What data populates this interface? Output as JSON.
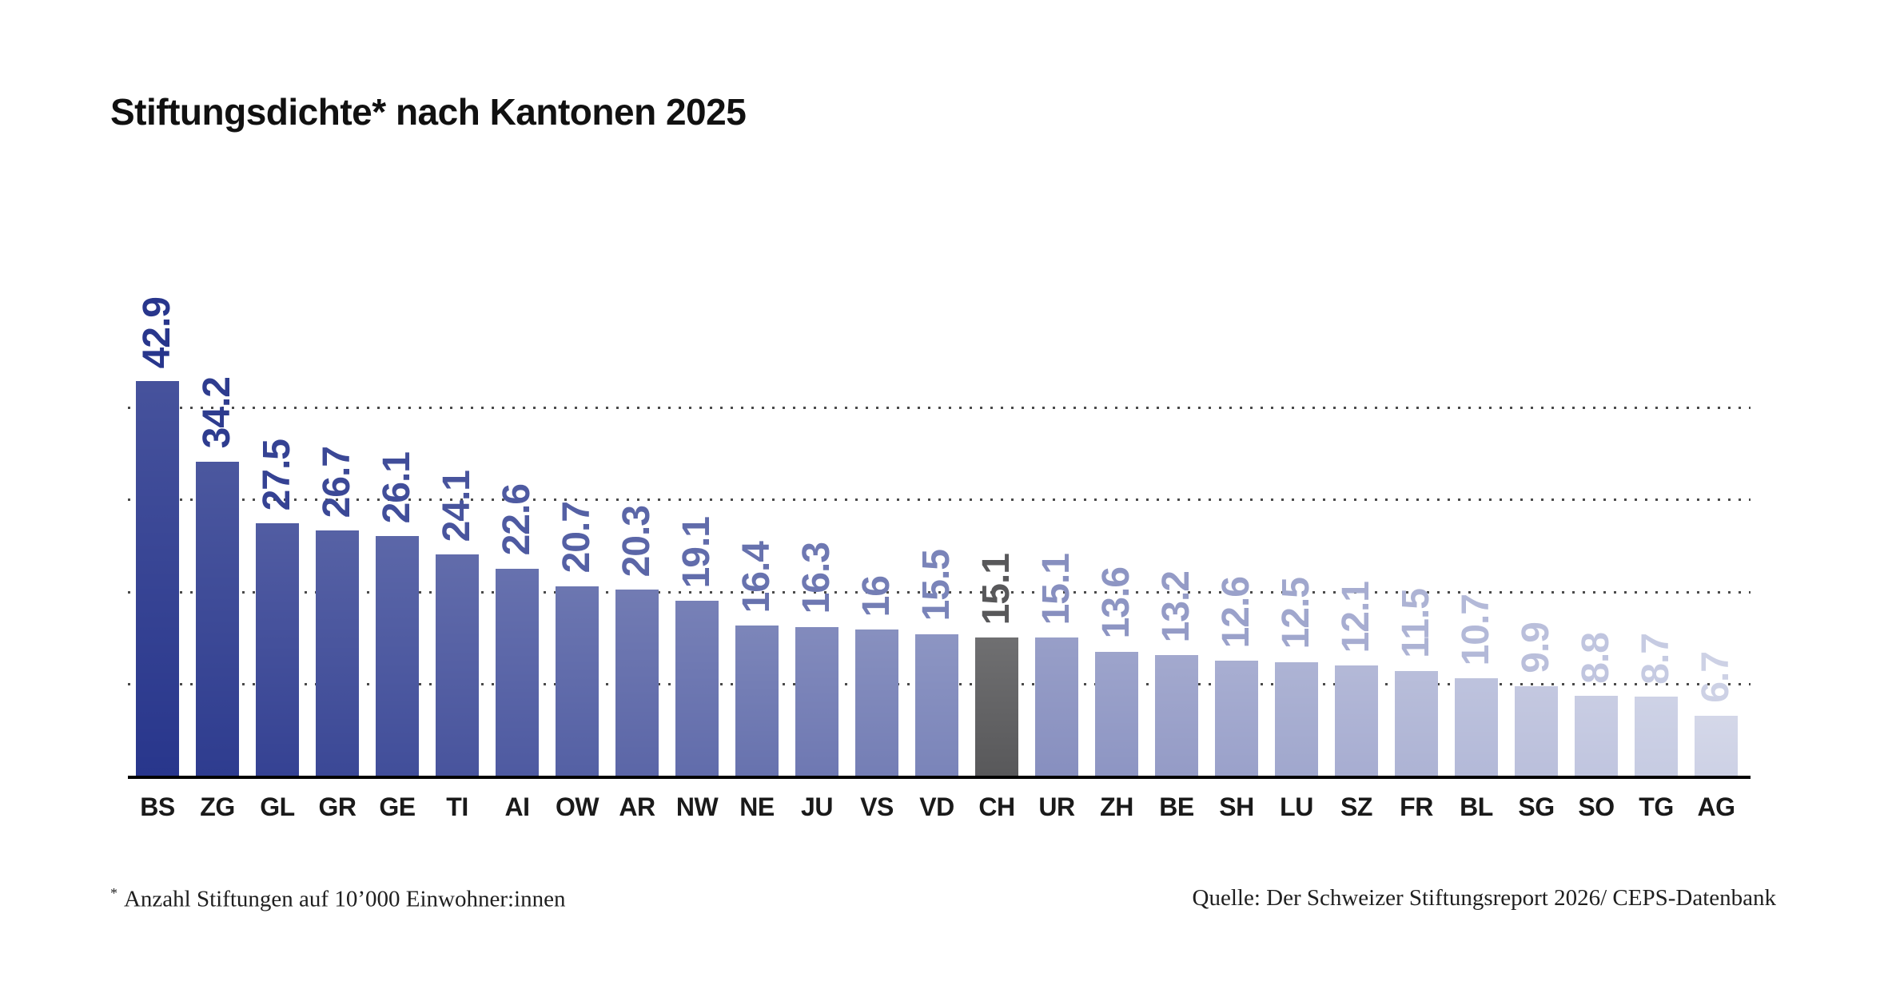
{
  "title": "Stiftungsdichte* nach Kantonen 2025",
  "chart_data": {
    "type": "bar",
    "title": "Stiftungsdichte* nach Kantonen 2025",
    "categories": [
      "BS",
      "ZG",
      "GL",
      "GR",
      "GE",
      "TI",
      "AI",
      "OW",
      "AR",
      "NW",
      "NE",
      "JU",
      "VS",
      "VD",
      "CH",
      "UR",
      "ZH",
      "BE",
      "SH",
      "LU",
      "SZ",
      "FR",
      "BL",
      "SG",
      "SO",
      "TG",
      "AG"
    ],
    "values": [
      42.9,
      34.2,
      27.5,
      26.7,
      26.1,
      24.1,
      22.6,
      20.7,
      20.3,
      19.1,
      16.4,
      16.3,
      16,
      15.5,
      15.1,
      15.1,
      13.6,
      13.2,
      12.6,
      12.5,
      12.1,
      11.5,
      10.7,
      9.9,
      8.8,
      8.7,
      6.7
    ],
    "bar_colors": [
      "#28368C",
      "#2E3C8F",
      "#354293",
      "#3B4896",
      "#414E9A",
      "#48549D",
      "#4E5AA1",
      "#5460A4",
      "#5B66A7",
      "#616CAB",
      "#6772AE",
      "#6E78B2",
      "#747EB5",
      "#7A84B9",
      "#58585A",
      "#878FBF",
      "#8D95C3",
      "#949BC6",
      "#9AA1CA",
      "#A0A7CD",
      "#A7ADD1",
      "#ADB3D4",
      "#B3B9D8",
      "#BABFDB",
      "#C0C5DF",
      "#C6CBE2",
      "#CDD1E5"
    ],
    "highlight_category": "CH",
    "highlight_color": "#58585A",
    "xlabel": "",
    "ylabel": "",
    "ylim": [
      0,
      45
    ],
    "gridline_values": [
      10,
      20,
      30,
      40
    ],
    "gridline_style": "dotted",
    "axis_line_color": "#000000",
    "value_label_style": "rotated 90deg, colored same as bar",
    "legend": "none"
  },
  "footnote": {
    "marker": "*",
    "text": "Anzahl Stiftungen auf 10’000 Einwohner:innen"
  },
  "source": "Quelle: Der Schweizer Stiftungsreport 2026/ CEPS-Datenbank"
}
